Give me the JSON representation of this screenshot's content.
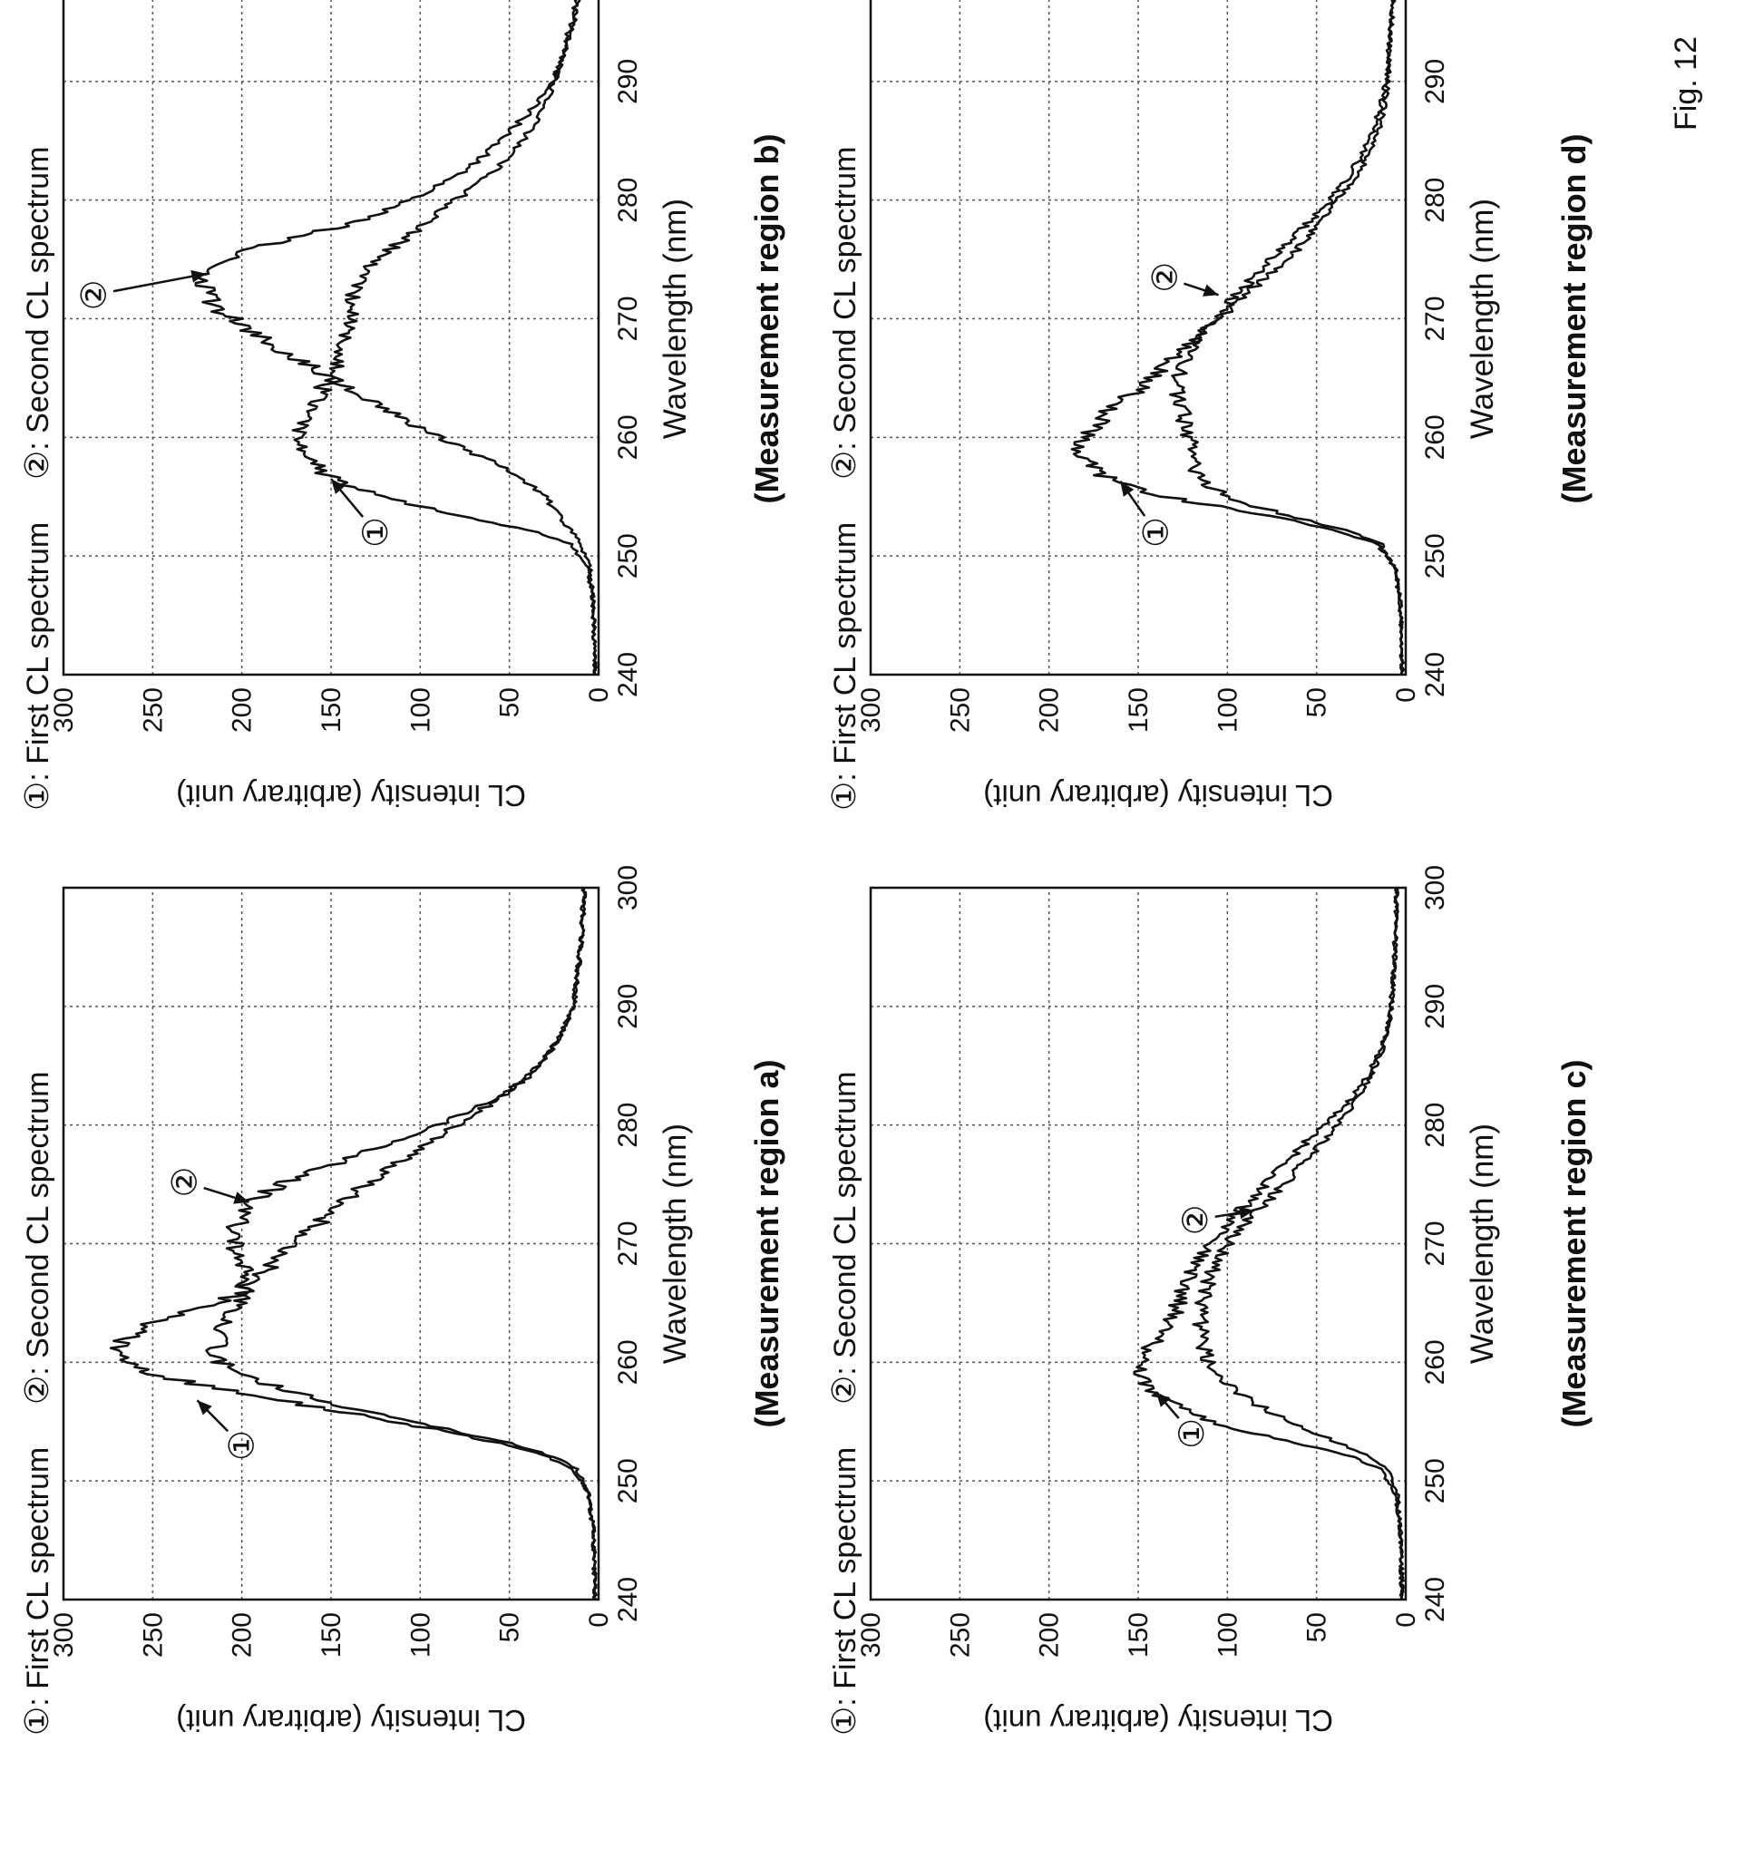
{
  "figure_label": "Fig. 12",
  "common": {
    "ylabel": "CL intensity (arbitrary unit)",
    "xlabel": "Wavelength (nm)",
    "legend_first": "First CL spectrum",
    "legend_second": "Second CL spectrum",
    "marker_1": "①",
    "marker_2": "②",
    "x_ticks": [
      "240",
      "250",
      "260",
      "270",
      "280",
      "290",
      "300"
    ],
    "y_ticks": [
      "0",
      "50",
      "100",
      "150",
      "200",
      "250",
      "300"
    ]
  },
  "chart_data": [
    {
      "type": "line",
      "region_label": "(Measurement region a)",
      "xlabel": "Wavelength (nm)",
      "ylabel": "CL intensity (arbitrary unit)",
      "xlim": [
        240,
        300
      ],
      "ylim": [
        0,
        300
      ],
      "grid": true,
      "legend": "top",
      "series": [
        {
          "name": "First CL spectrum",
          "marker": "①",
          "x": [
            240,
            246,
            249,
            251,
            252,
            253,
            254,
            255,
            256,
            257,
            258,
            259,
            260,
            261,
            262,
            263,
            264,
            265,
            266,
            268,
            270,
            272,
            274,
            276,
            278,
            280,
            282,
            284,
            286,
            288,
            290,
            295,
            300
          ],
          "values": [
            2,
            3,
            6,
            14,
            28,
            50,
            80,
            115,
            150,
            185,
            220,
            250,
            268,
            272,
            265,
            255,
            235,
            215,
            200,
            185,
            170,
            155,
            140,
            120,
            100,
            80,
            58,
            40,
            28,
            20,
            14,
            10,
            8
          ]
        },
        {
          "name": "Second CL spectrum",
          "marker": "②",
          "x": [
            240,
            246,
            249,
            251,
            252,
            253,
            254,
            255,
            256,
            257,
            258,
            259,
            260,
            261,
            262,
            263,
            264,
            265,
            266,
            268,
            270,
            272,
            273,
            274,
            275,
            276,
            278,
            280,
            282,
            284,
            286,
            288,
            290,
            295,
            300
          ],
          "values": [
            2,
            3,
            6,
            12,
            24,
            45,
            75,
            105,
            135,
            160,
            182,
            200,
            212,
            215,
            213,
            212,
            205,
            200,
            198,
            200,
            205,
            202,
            198,
            190,
            178,
            160,
            125,
            90,
            60,
            40,
            28,
            20,
            14,
            10,
            8
          ]
        }
      ]
    },
    {
      "type": "line",
      "region_label": "(Measurement region b)",
      "xlabel": "Wavelength (nm)",
      "ylabel": "CL intensity (arbitrary unit)",
      "xlim": [
        240,
        300
      ],
      "ylim": [
        0,
        300
      ],
      "grid": true,
      "legend": "top",
      "series": [
        {
          "name": "First CL spectrum",
          "marker": "①",
          "x": [
            240,
            246,
            249,
            251,
            252,
            253,
            254,
            255,
            256,
            257,
            258,
            259,
            260,
            261,
            262,
            264,
            266,
            268,
            270,
            272,
            274,
            276,
            278,
            280,
            282,
            284,
            286,
            288,
            290,
            295,
            300
          ],
          "values": [
            2,
            3,
            6,
            16,
            35,
            65,
            95,
            120,
            140,
            155,
            162,
            165,
            168,
            165,
            162,
            155,
            148,
            142,
            140,
            138,
            130,
            115,
            98,
            80,
            62,
            48,
            38,
            30,
            25,
            15,
            8
          ]
        },
        {
          "name": "Second CL spectrum",
          "marker": "②",
          "x": [
            240,
            246,
            249,
            251,
            252,
            253,
            254,
            255,
            256,
            257,
            258,
            259,
            260,
            262,
            264,
            266,
            268,
            270,
            271,
            272,
            273,
            274,
            275,
            276,
            277,
            278,
            280,
            282,
            284,
            286,
            288,
            290,
            295,
            300
          ],
          "values": [
            2,
            3,
            5,
            10,
            15,
            20,
            25,
            30,
            38,
            48,
            60,
            75,
            90,
            115,
            140,
            162,
            185,
            205,
            215,
            220,
            222,
            220,
            210,
            190,
            165,
            140,
            105,
            80,
            62,
            48,
            35,
            25,
            14,
            8
          ]
        }
      ]
    },
    {
      "type": "line",
      "region_label": "(Measurement region c)",
      "xlabel": "Wavelength (nm)",
      "ylabel": "CL intensity (arbitrary unit)",
      "xlim": [
        240,
        300
      ],
      "ylim": [
        0,
        300
      ],
      "grid": true,
      "legend": "top",
      "series": [
        {
          "name": "First CL spectrum",
          "marker": "①",
          "x": [
            240,
            246,
            249,
            251,
            252,
            253,
            254,
            255,
            256,
            257,
            258,
            259,
            260,
            262,
            264,
            266,
            268,
            270,
            272,
            274,
            276,
            278,
            280,
            282,
            284,
            286,
            288,
            290,
            295,
            300
          ],
          "values": [
            2,
            3,
            6,
            14,
            30,
            55,
            85,
            110,
            125,
            138,
            145,
            148,
            148,
            140,
            130,
            125,
            118,
            110,
            98,
            85,
            72,
            60,
            45,
            32,
            22,
            15,
            10,
            8,
            6,
            5
          ]
        },
        {
          "name": "Second CL spectrum",
          "marker": "②",
          "x": [
            240,
            246,
            249,
            251,
            252,
            253,
            254,
            255,
            256,
            257,
            258,
            259,
            260,
            262,
            264,
            266,
            268,
            270,
            272,
            274,
            276,
            278,
            280,
            282,
            284,
            286,
            288,
            290,
            295,
            300
          ],
          "values": [
            2,
            3,
            5,
            10,
            20,
            35,
            50,
            65,
            78,
            90,
            98,
            105,
            110,
            115,
            115,
            112,
            108,
            100,
            88,
            75,
            62,
            50,
            38,
            28,
            20,
            14,
            10,
            8,
            6,
            5
          ]
        }
      ]
    },
    {
      "type": "line",
      "region_label": "(Measurement region d)",
      "xlabel": "Wavelength (nm)",
      "ylabel": "CL intensity (arbitrary unit)",
      "xlim": [
        240,
        300
      ],
      "ylim": [
        0,
        300
      ],
      "grid": true,
      "legend": "top",
      "series": [
        {
          "name": "First CL spectrum",
          "marker": "①",
          "x": [
            240,
            246,
            249,
            251,
            252,
            253,
            254,
            255,
            256,
            257,
            258,
            259,
            260,
            261,
            262,
            263,
            264,
            266,
            268,
            270,
            272,
            274,
            276,
            278,
            280,
            282,
            284,
            286,
            288,
            290,
            295,
            300
          ],
          "values": [
            2,
            3,
            6,
            16,
            35,
            65,
            100,
            135,
            158,
            172,
            180,
            182,
            180,
            175,
            168,
            160,
            150,
            135,
            120,
            105,
            90,
            75,
            60,
            48,
            38,
            28,
            20,
            15,
            12,
            10,
            8,
            6
          ]
        },
        {
          "name": "Second CL spectrum",
          "marker": "②",
          "x": [
            240,
            246,
            249,
            251,
            252,
            253,
            254,
            255,
            256,
            257,
            258,
            259,
            260,
            262,
            264,
            266,
            268,
            270,
            272,
            274,
            276,
            278,
            280,
            282,
            284,
            286,
            288,
            290,
            295,
            300
          ],
          "values": [
            2,
            3,
            6,
            14,
            30,
            55,
            80,
            100,
            112,
            118,
            120,
            120,
            122,
            125,
            128,
            125,
            118,
            108,
            95,
            82,
            68,
            55,
            42,
            32,
            24,
            18,
            14,
            11,
            8,
            6
          ]
        }
      ]
    }
  ]
}
